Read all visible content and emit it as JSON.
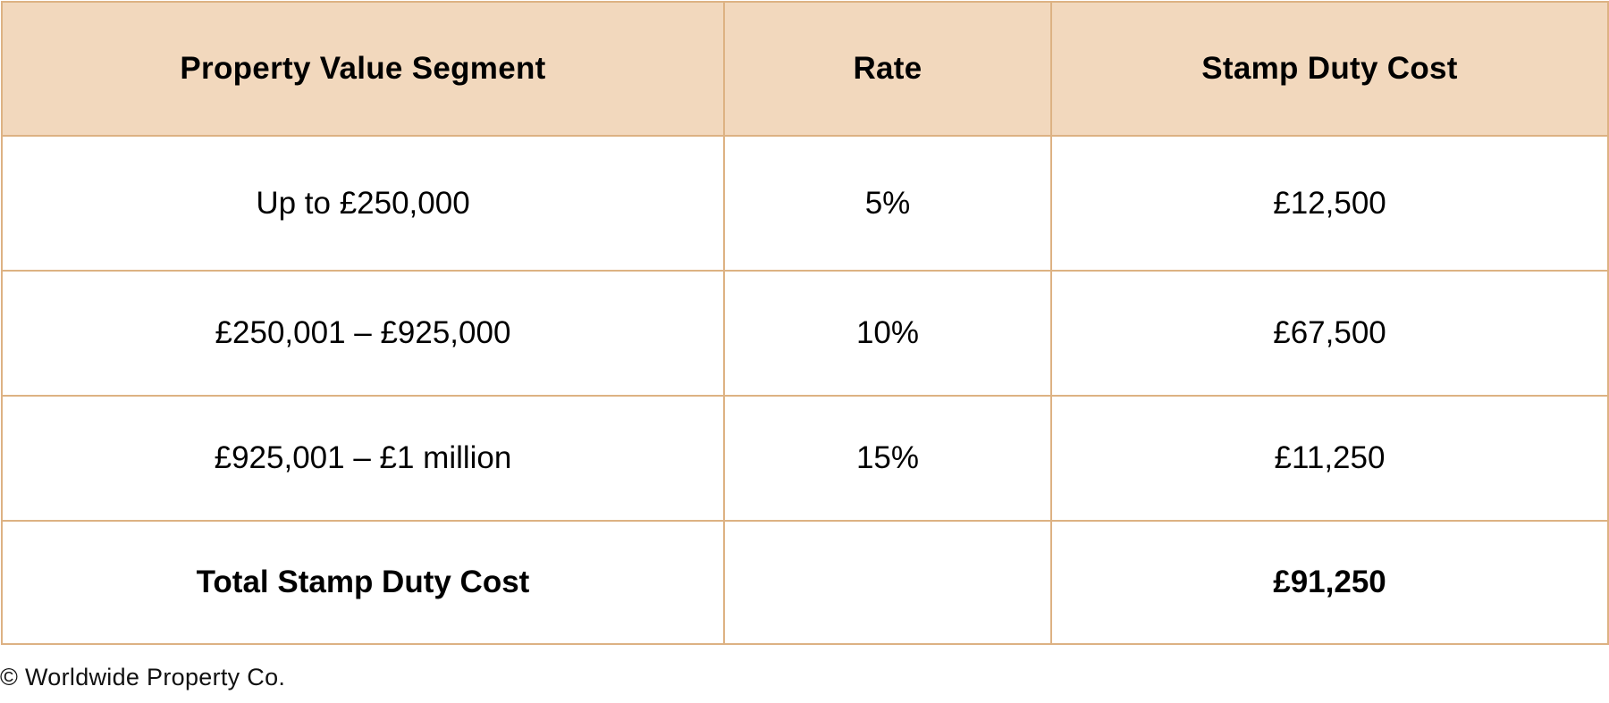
{
  "table": {
    "colors": {
      "header_background": "#F2D8BD",
      "border": "#DDB283",
      "body_background": "#FFFFFF",
      "text": "#000000"
    },
    "headers": [
      "Property Value Segment",
      "Rate",
      "Stamp Duty Cost"
    ],
    "rows": [
      {
        "segment": "Up to £250,000",
        "rate": "5%",
        "cost": "£12,500"
      },
      {
        "segment": "£250,001 – £925,000",
        "rate": "10%",
        "cost": "£67,500"
      },
      {
        "segment": "£925,001 – £1 million",
        "rate": "15%",
        "cost": "£11,250"
      }
    ],
    "total": {
      "label": "Total Stamp Duty Cost",
      "rate": "",
      "cost": "£91,250"
    }
  },
  "footer": {
    "copyright": "© Worldwide Property Co."
  }
}
